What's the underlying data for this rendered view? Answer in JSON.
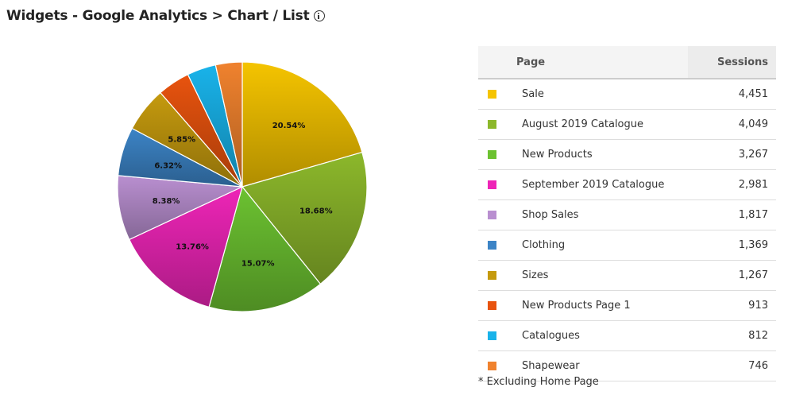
{
  "header": {
    "title": "Widgets - Google Analytics > Chart / List"
  },
  "icons": {
    "info": "info-icon"
  },
  "table": {
    "headers": {
      "page": "Page",
      "sessions": "Sessions"
    },
    "rows": [
      {
        "page": "Sale",
        "sessions": "4,451",
        "color": "#f5c400"
      },
      {
        "page": "August 2019 Catalogue",
        "sessions": "4,049",
        "color": "#8cb82b"
      },
      {
        "page": "New Products",
        "sessions": "3,267",
        "color": "#6cc231"
      },
      {
        "page": "September 2019 Catalogue",
        "sessions": "2,981",
        "color": "#ee25b7"
      },
      {
        "page": "Shop Sales",
        "sessions": "1,817",
        "color": "#b98fd0"
      },
      {
        "page": "Clothing",
        "sessions": "1,369",
        "color": "#3c84c6"
      },
      {
        "page": "Sizes",
        "sessions": "1,267",
        "color": "#c59a0e"
      },
      {
        "page": "New Products Page 1",
        "sessions": "913",
        "color": "#e8530e"
      },
      {
        "page": "Catalogues",
        "sessions": "812",
        "color": "#19b3ea"
      },
      {
        "page": "Shapewear",
        "sessions": "746",
        "color": "#f0822e"
      }
    ]
  },
  "footnote": "* Excluding Home Page",
  "chart_data": {
    "type": "pie",
    "title": "",
    "categories": [
      "Sale",
      "August 2019 Catalogue",
      "New Products",
      "September 2019 Catalogue",
      "Shop Sales",
      "Clothing",
      "Sizes",
      "New Products Page 1",
      "Catalogues",
      "Shapewear"
    ],
    "values": [
      4451,
      4049,
      3267,
      2981,
      1817,
      1369,
      1267,
      913,
      812,
      746
    ],
    "labels": [
      "20.54%",
      "18.68%",
      "15.07%",
      "13.76%",
      "8.38%",
      "6.32%",
      "5.85%",
      "",
      "",
      ""
    ],
    "colors": [
      "#f5c400",
      "#8cb82b",
      "#6cc231",
      "#ee25b7",
      "#b98fd0",
      "#3c84c6",
      "#c59a0e",
      "#e8530e",
      "#19b3ea",
      "#f0822e"
    ],
    "legend": "right"
  }
}
